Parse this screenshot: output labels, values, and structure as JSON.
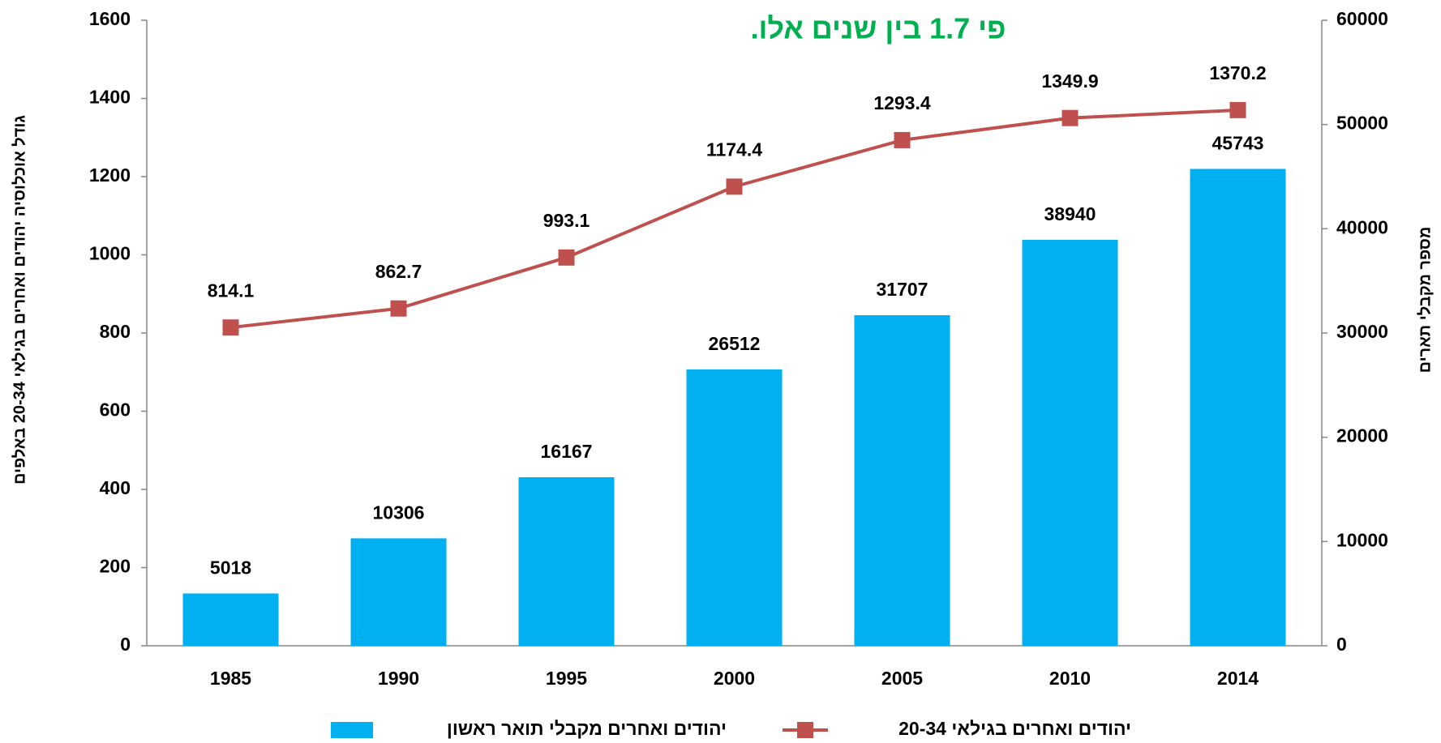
{
  "chart_data": {
    "type": "combo",
    "title": "פי 1.7 בין שנים אלו.",
    "title_color": "#00b050",
    "y_label": "גודל אוכלוסיה יהודים ואחרים בגילאי 20-34 באלפים",
    "y2_label": "מספר מקבלי תארים",
    "categories": [
      "1985",
      "1990",
      "1995",
      "2000",
      "2005",
      "2010",
      "2014"
    ],
    "series": [
      {
        "name": "יהודים ואחרים מקבלי תואר ראשון",
        "type": "bar",
        "axis": "y2",
        "color": "#00b0f0",
        "values": [
          5018,
          10306,
          16167,
          26512,
          31707,
          38940,
          45743
        ]
      },
      {
        "name": "יהודים ואחרים בגילאי 20-34",
        "type": "line",
        "axis": "y",
        "color": "#c0504d",
        "values": [
          814.1,
          862.7,
          993.1,
          1174.4,
          1293.4,
          1349.9,
          1370.2
        ]
      }
    ],
    "ylim": [
      0,
      1600
    ],
    "yticks": [
      0,
      200,
      400,
      600,
      800,
      1000,
      1200,
      1400,
      1600
    ],
    "y2lim": [
      0,
      60000
    ],
    "y2ticks": [
      0,
      10000,
      20000,
      30000,
      40000,
      50000,
      60000
    ],
    "legend": "bottom"
  }
}
